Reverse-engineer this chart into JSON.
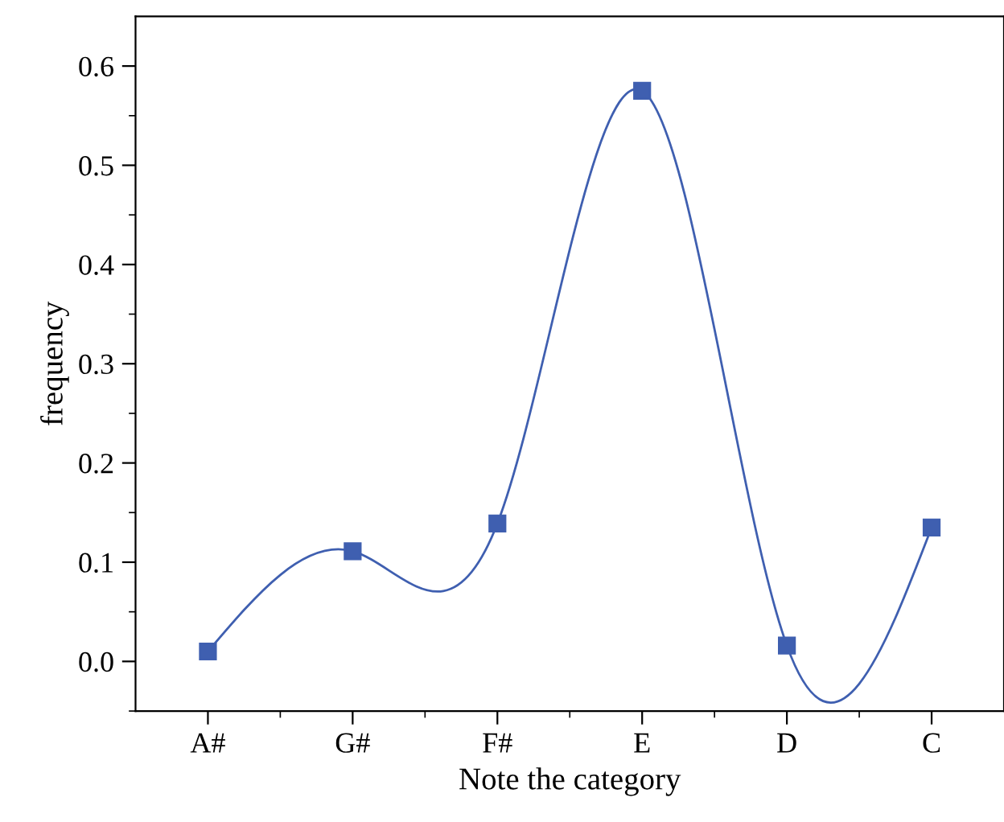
{
  "chart_data": {
    "type": "line",
    "xlabel": "Note the category",
    "ylabel": "frequency",
    "categories": [
      "A#",
      "G#",
      "F#",
      "E",
      "D",
      "C"
    ],
    "series": [
      {
        "color": "#3f5fb0",
        "values": [
          0.01,
          0.111,
          0.139,
          0.575,
          0.016,
          0.135
        ]
      }
    ],
    "ylim": [
      -0.05,
      0.65
    ],
    "yticks": [
      {
        "value": 0,
        "label": "0.0"
      },
      0.1,
      0.2,
      0.3,
      0.4,
      0.5,
      0.6
    ],
    "marker": "square",
    "line_style": "solid",
    "grid": false,
    "legend": false
  }
}
